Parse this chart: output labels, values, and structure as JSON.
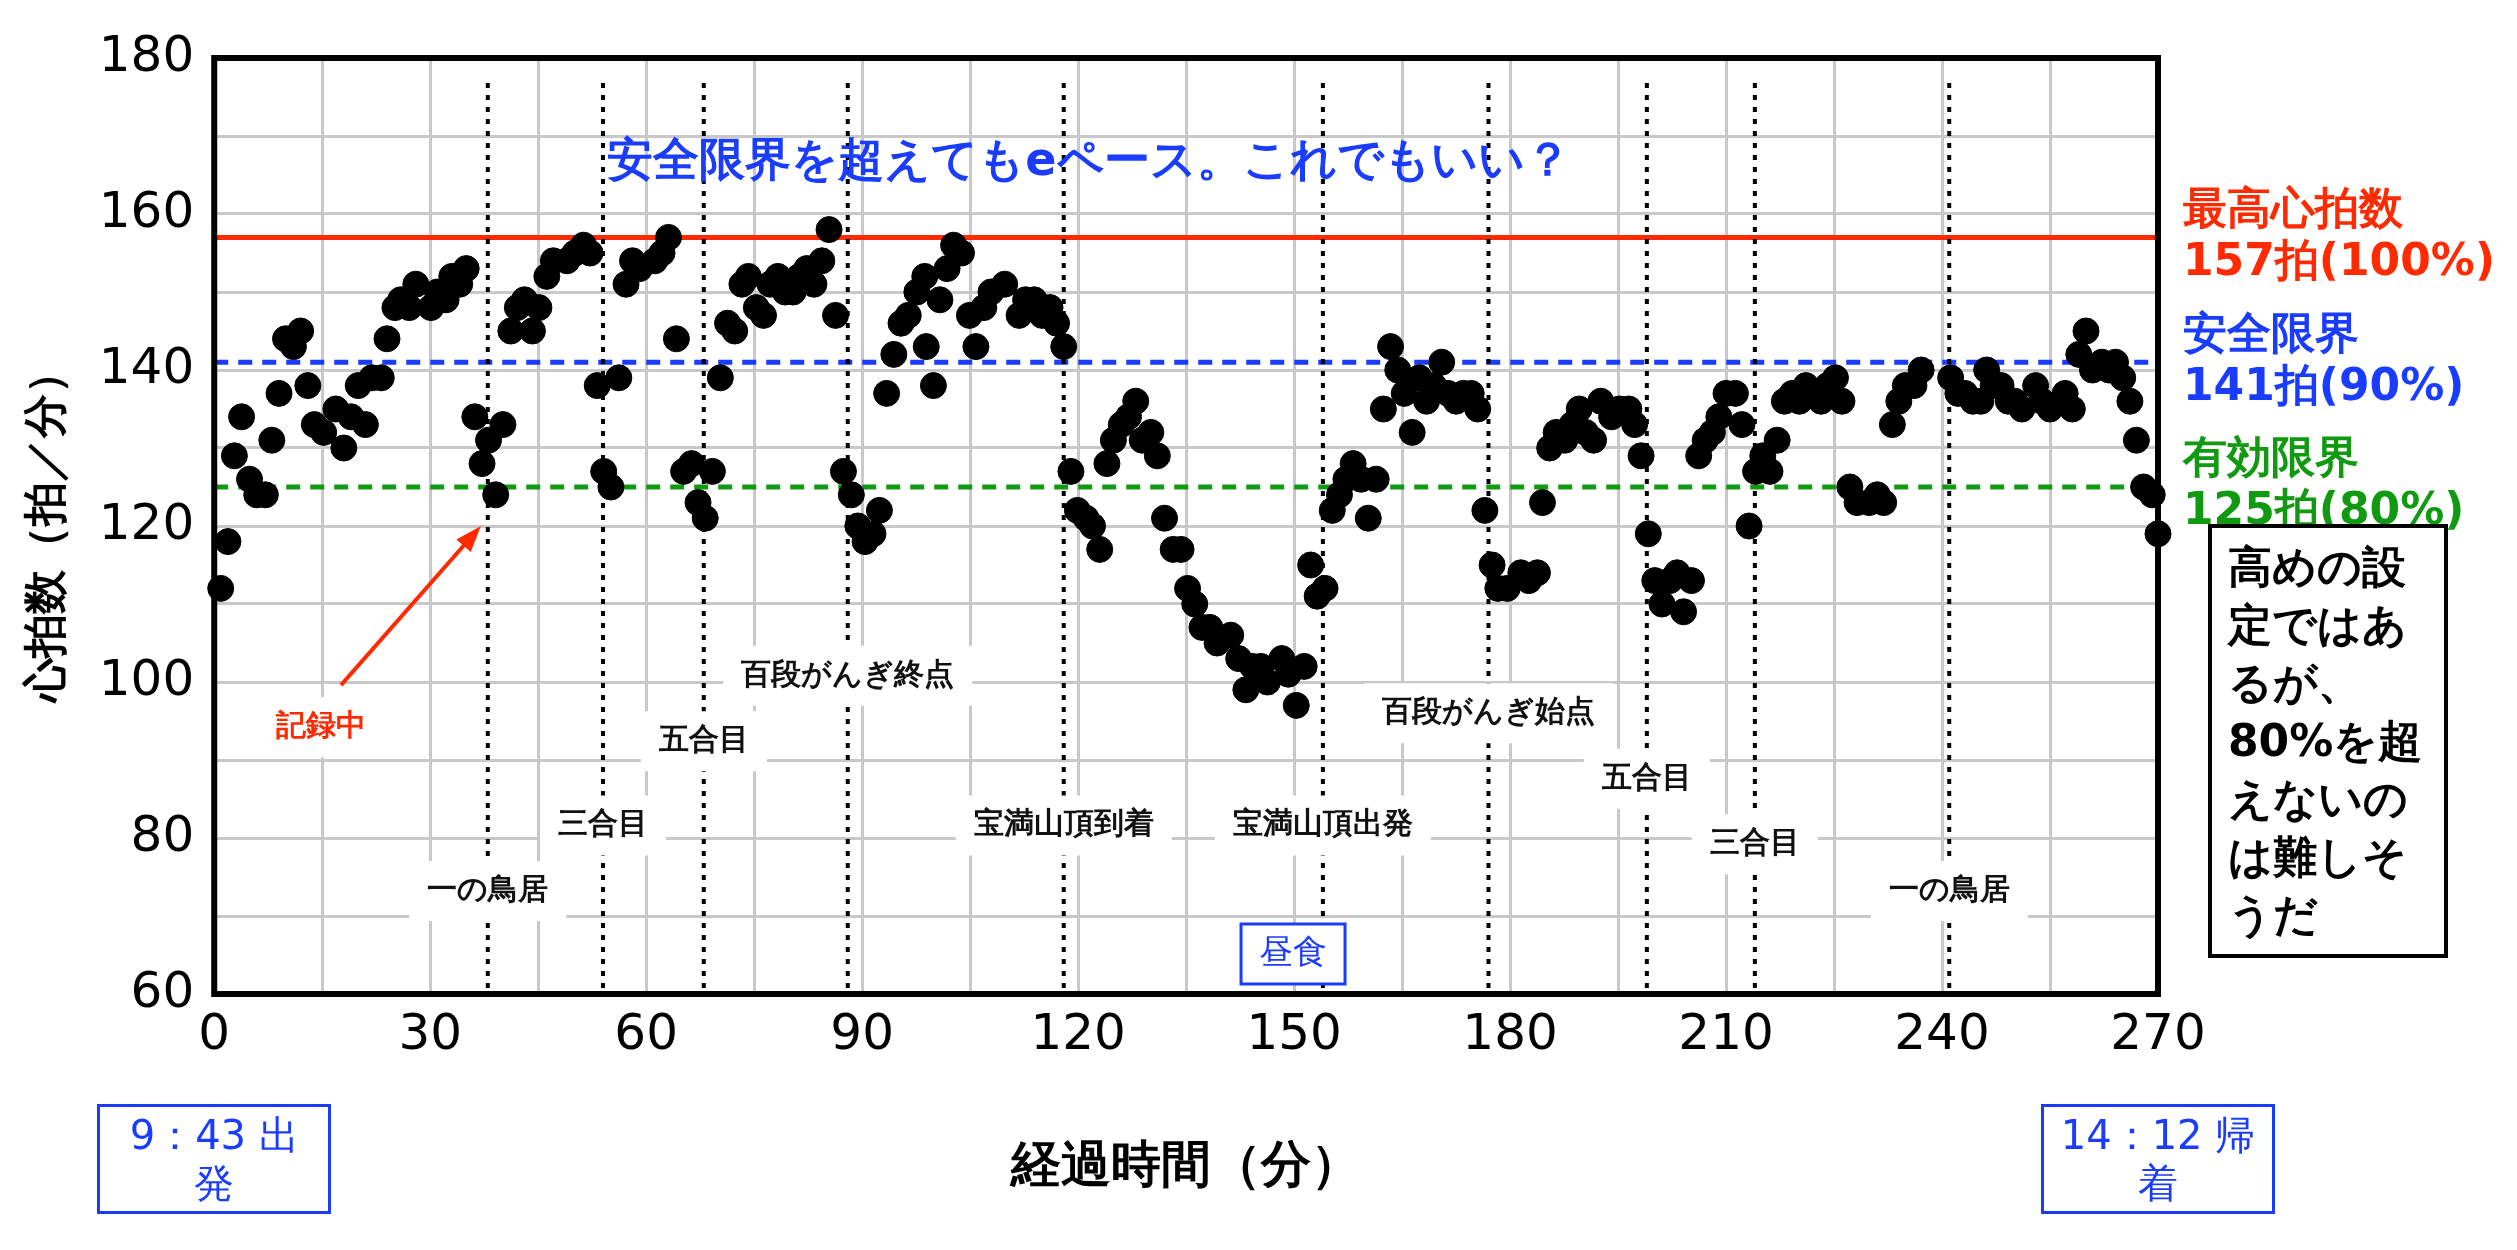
{
  "chart_data": {
    "type": "scatter",
    "xlabel": "経過時間（分）",
    "ylabel": "心拍数（拍／分）",
    "xlim": [
      0,
      270
    ],
    "ylim": [
      60,
      180
    ],
    "xticks": [
      0,
      {
        "value": 15,
        "label": null
      },
      30,
      {
        "value": 45,
        "label": null
      },
      60,
      {
        "value": 75,
        "label": null
      },
      90,
      {
        "value": 105,
        "label": null
      },
      120,
      {
        "value": 135,
        "label": null
      },
      150,
      {
        "value": 165,
        "label": null
      },
      180,
      {
        "value": 195,
        "label": null
      },
      210,
      {
        "value": 225,
        "label": null
      },
      240,
      {
        "value": 255,
        "label": null
      },
      270
    ],
    "yticks": [
      60,
      {
        "value": 70,
        "label": null
      },
      80,
      {
        "value": 90,
        "label": null
      },
      100,
      {
        "value": 110,
        "label": null
      },
      120,
      {
        "value": 130,
        "label": null
      },
      140,
      {
        "value": 150,
        "label": null
      },
      160,
      {
        "value": 170,
        "label": null
      },
      180
    ],
    "grid": true,
    "legend": false,
    "marker": "circle",
    "series": [
      {
        "color": "#000000",
        "x": [
          0.9,
          1.9,
          2.8,
          3.8,
          4.9,
          5.9,
          7.1,
          8,
          9,
          9.9,
          11,
          12,
          13,
          13.9,
          15.2,
          16.9,
          18,
          19,
          20,
          21,
          21.9,
          23.2,
          24,
          25.1,
          25.9,
          27.1,
          28,
          30.1,
          31,
          32.2,
          33,
          34.1,
          35,
          36.2,
          37.2,
          38.1,
          39.1,
          40.1,
          41.2,
          42.1,
          43.1,
          44.2,
          45.1,
          46.2,
          47.1,
          49,
          50.1,
          51.3,
          52.2,
          53.2,
          54.1,
          55.1,
          56.2,
          57.2,
          58.1,
          59.1,
          61.2,
          62.2,
          63.1,
          64.2,
          65.2,
          66.3,
          67.2,
          68.2,
          69.2,
          70.3,
          71.3,
          72.3,
          73.3,
          74.2,
          75.3,
          76.3,
          77.2,
          78.3,
          79.3,
          80.4,
          81.3,
          82.3,
          83.3,
          84.4,
          85.4,
          86.3,
          87.4,
          88.5,
          89.4,
          90.4,
          91.5,
          92.4,
          93.4,
          94.4,
          95.4,
          96.4,
          97.6,
          98.7,
          98.9,
          99.9,
          100.8,
          101.8,
          102.7,
          103.8,
          104.9,
          105.8,
          106.9,
          107.9,
          109.8,
          111.8,
          112.7,
          113.9,
          115,
          116.1,
          117,
          118,
          119,
          119.9,
          121.1,
          122,
          123,
          124,
          124.9,
          126,
          127,
          128,
          128.9,
          130.1,
          131,
          132,
          133.2,
          134.3,
          135.2,
          136.2,
          137.2,
          138.3,
          139.3,
          141.2,
          142.3,
          143.3,
          144.2,
          145.4,
          146.3,
          148.3,
          149.2,
          150.3,
          151.4,
          152.3,
          153.2,
          154.3,
          155.3,
          156.3,
          157.2,
          158.2,
          159.3,
          160.3,
          161.4,
          162.4,
          163.4,
          164.4,
          165.3,
          166.4,
          167.4,
          168.4,
          169.4,
          170.5,
          171.4,
          172.5,
          173.5,
          174.6,
          175.5,
          176.5,
          177.5,
          178.3,
          179.6,
          181.5,
          182.6,
          183.8,
          184.5,
          185.5,
          186.4,
          187.6,
          188.6,
          189.6,
          190.5,
          191.6,
          192.6,
          194.1,
          195.2,
          196.5,
          197.3,
          198.2,
          199.2,
          200.1,
          201.1,
          202.2,
          203.2,
          204.1,
          205.2,
          206.2,
          207.1,
          208.1,
          209,
          210,
          211.3,
          212.2,
          213.2,
          214.1,
          215.1,
          216.1,
          217.1,
          218.1,
          219.2,
          220.2,
          221.1,
          223.2,
          224.1,
          225.2,
          226.1,
          227.2,
          228.2,
          229.9,
          231,
          231.9,
          233.1,
          234,
          234.9,
          236.1,
          237.1,
          241.2,
          242.2,
          243.2,
          244.3,
          245.4,
          246.2,
          247.1,
          248.2,
          249.2,
          250.1,
          251.1,
          253,
          253.9,
          255,
          257.1,
          258.1,
          259,
          260,
          260.9,
          262.2,
          263.2,
          264.1,
          265.1,
          266.1,
          267,
          268,
          269.2,
          270
        ],
        "values": [
          112,
          118,
          129,
          134,
          126,
          124,
          124,
          131,
          137,
          144,
          143,
          145,
          138,
          133,
          132,
          135,
          130,
          134,
          138,
          133,
          139,
          139,
          144,
          148,
          149,
          148,
          151,
          148,
          150,
          149,
          152,
          151,
          153,
          134,
          128,
          131,
          124,
          133,
          145,
          148,
          149,
          145,
          148,
          152,
          154,
          154,
          155,
          156,
          155,
          138,
          127,
          125,
          139,
          151,
          154,
          153,
          154,
          155,
          157,
          144,
          127,
          128,
          123,
          121,
          127,
          139,
          146,
          145,
          151,
          152,
          148,
          147,
          151,
          152,
          150,
          150,
          152,
          153,
          151,
          154,
          158,
          147,
          127,
          124,
          120,
          118,
          119,
          122,
          137,
          142,
          146,
          147,
          150,
          152,
          143,
          138,
          149,
          153,
          156,
          155,
          147,
          143,
          148,
          150,
          151,
          147,
          149,
          149,
          147,
          148,
          146,
          143,
          127,
          122,
          121,
          120,
          117,
          128,
          131,
          133,
          134,
          136,
          131,
          132,
          129,
          121,
          117,
          117,
          112,
          110,
          107,
          107,
          105,
          106,
          103,
          99,
          102,
          102,
          100,
          103,
          101,
          97,
          102,
          115,
          111,
          112,
          122,
          124,
          126,
          128,
          126,
          121,
          126,
          135,
          143,
          140,
          137,
          132,
          139,
          136,
          138,
          141,
          137,
          136,
          137,
          137,
          135,
          122,
          115,
          112,
          112,
          114,
          113,
          114,
          123,
          130,
          132,
          131,
          133,
          135,
          132,
          131,
          136,
          134,
          135,
          135,
          133,
          129,
          119,
          113,
          110,
          113,
          114,
          109,
          113,
          129,
          131,
          132,
          134,
          137,
          137,
          133,
          120,
          127,
          129,
          127,
          131,
          136,
          137,
          136,
          138,
          136,
          138,
          139,
          136,
          125,
          123,
          123,
          124,
          123,
          133,
          136,
          138,
          138,
          140,
          139,
          137,
          137,
          136,
          136,
          140,
          138,
          138,
          136,
          136,
          135,
          138,
          136,
          135,
          137,
          135,
          142,
          145,
          140,
          141,
          140,
          141,
          139,
          136,
          131,
          125,
          124,
          119
        ]
      }
    ],
    "ref_lines": [
      {
        "axis": "y",
        "value": 157,
        "label": "最高心拍数\n157拍(100%)",
        "color": "#ff2a00",
        "line_style": "solid"
      },
      {
        "axis": "y",
        "value": 141,
        "label": "安全限界\n141拍(90%)",
        "color": "#1a3cff",
        "line_style": "dashed"
      },
      {
        "axis": "y",
        "value": 125,
        "label": "有効限界\n125拍(80%)",
        "color": "#119911",
        "line_style": "dashed"
      },
      {
        "axis": "x",
        "value": 38,
        "label": "一の鳥居",
        "color": "#000000",
        "line_style": "dotted"
      },
      {
        "axis": "x",
        "value": 54,
        "label": "三合目",
        "color": "#000000",
        "line_style": "dotted"
      },
      {
        "axis": "x",
        "value": 68,
        "label": "五合目",
        "color": "#000000",
        "line_style": "dotted"
      },
      {
        "axis": "x",
        "value": 88,
        "label": "百段がんぎ終点",
        "color": "#000000",
        "line_style": "dotted"
      },
      {
        "axis": "x",
        "value": 118,
        "label": "宝満山頂到着",
        "color": "#000000",
        "line_style": "dotted"
      },
      {
        "axis": "x",
        "value": 154,
        "label": "宝満山頂出発",
        "color": "#000000",
        "line_style": "dotted"
      },
      {
        "axis": "x",
        "value": 177,
        "label": "百段がんぎ始点",
        "color": "#000000",
        "line_style": "dotted"
      },
      {
        "axis": "x",
        "value": 199,
        "label": "五合目",
        "color": "#000000",
        "line_style": "dotted"
      },
      {
        "axis": "x",
        "value": 214,
        "label": "三合目",
        "color": "#000000",
        "line_style": "dotted"
      },
      {
        "axis": "x",
        "value": 241,
        "label": "一の鳥居",
        "color": "#000000",
        "line_style": "dotted"
      }
    ],
    "annotations": [
      "安全限界を超えてもeペース。これでもいい？",
      "記録中",
      "昼食",
      "9：43 出発",
      "14：12 帰着",
      "高めの設定ではあるが、80%を超えないのは難しそうだ"
    ]
  }
}
